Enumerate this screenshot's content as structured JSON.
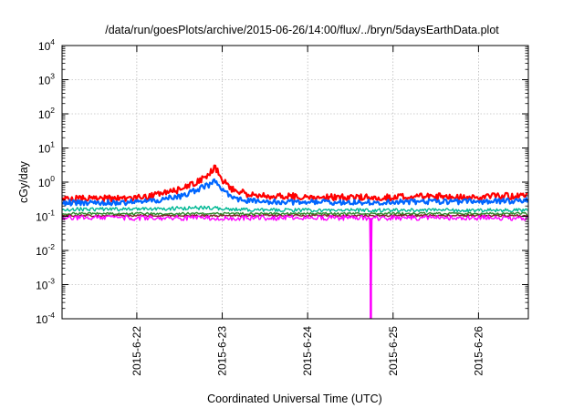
{
  "chart_data": {
    "type": "line",
    "title": "/data/run/goesPlots/archive/2015-06-26/14:00/flux/../bryn/5daysEarthData.plot",
    "xlabel": "Coordinated Universal Time (UTC)",
    "ylabel": "cGy/day",
    "yscale": "log",
    "ylim": [
      0.0001,
      10000
    ],
    "xlim": [
      "2015-06-21T03:00",
      "2015-06-26T14:00"
    ],
    "x_ticks": [
      "2015-6-22",
      "2015-6-23",
      "2015-6-24",
      "2015-6-25",
      "2015-6-26"
    ],
    "y_ticks": [
      {
        "base": "10",
        "exp": "-4"
      },
      {
        "base": "10",
        "exp": "-3"
      },
      {
        "base": "10",
        "exp": "-2"
      },
      {
        "base": "10",
        "exp": "-1"
      },
      {
        "base": "10",
        "exp": "0"
      },
      {
        "base": "10",
        "exp": "1"
      },
      {
        "base": "10",
        "exp": "2"
      },
      {
        "base": "10",
        "exp": "3"
      },
      {
        "base": "10",
        "exp": "4"
      }
    ],
    "grid": true,
    "legend": "none",
    "series": [
      {
        "color": "#ff0000",
        "x": [
          "2015-06-21T03:00",
          "2015-06-21T12:00",
          "2015-06-22T00:00",
          "2015-06-22T06:00",
          "2015-06-22T12:00",
          "2015-06-22T16:00",
          "2015-06-22T20:00",
          "2015-06-22T22:00",
          "2015-06-23T00:00",
          "2015-06-23T03:00",
          "2015-06-23T08:00",
          "2015-06-23T14:00",
          "2015-06-24T00:00",
          "2015-06-24T12:00",
          "2015-06-25T00:00",
          "2015-06-25T12:00",
          "2015-06-26T00:00",
          "2015-06-26T14:00"
        ],
        "y": [
          0.32,
          0.33,
          0.35,
          0.42,
          0.6,
          0.9,
          1.6,
          2.8,
          1.2,
          0.6,
          0.42,
          0.4,
          0.37,
          0.36,
          0.36,
          0.38,
          0.37,
          0.4
        ]
      },
      {
        "color": "#0066ff",
        "x": [
          "2015-06-21T03:00",
          "2015-06-21T12:00",
          "2015-06-22T00:00",
          "2015-06-22T06:00",
          "2015-06-22T12:00",
          "2015-06-22T16:00",
          "2015-06-22T20:00",
          "2015-06-22T22:00",
          "2015-06-23T00:00",
          "2015-06-23T03:00",
          "2015-06-23T08:00",
          "2015-06-23T14:00",
          "2015-06-24T00:00",
          "2015-06-24T12:00",
          "2015-06-25T00:00",
          "2015-06-25T12:00",
          "2015-06-26T00:00",
          "2015-06-26T14:00"
        ],
        "y": [
          0.25,
          0.25,
          0.26,
          0.3,
          0.38,
          0.55,
          0.8,
          1.1,
          0.6,
          0.33,
          0.28,
          0.27,
          0.26,
          0.26,
          0.26,
          0.27,
          0.27,
          0.29
        ]
      },
      {
        "color": "#00b894",
        "x": [
          "2015-06-21T03:00",
          "2015-06-22T00:00",
          "2015-06-22T20:00",
          "2015-06-23T04:00",
          "2015-06-24T00:00",
          "2015-06-25T00:00",
          "2015-06-26T00:00",
          "2015-06-26T14:00"
        ],
        "y": [
          0.16,
          0.16,
          0.18,
          0.16,
          0.15,
          0.15,
          0.15,
          0.15
        ]
      },
      {
        "color": "#2e8b2e",
        "x": [
          "2015-06-21T03:00",
          "2015-06-22T00:00",
          "2015-06-23T00:00",
          "2015-06-24T00:00",
          "2015-06-25T00:00",
          "2015-06-26T00:00",
          "2015-06-26T14:00"
        ],
        "y": [
          0.12,
          0.12,
          0.12,
          0.12,
          0.12,
          0.12,
          0.12
        ]
      },
      {
        "color": "#7a1f1f",
        "x": [
          "2015-06-21T03:00",
          "2015-06-22T00:00",
          "2015-06-23T00:00",
          "2015-06-24T00:00",
          "2015-06-25T00:00",
          "2015-06-26T00:00",
          "2015-06-26T14:00"
        ],
        "y": [
          0.105,
          0.105,
          0.105,
          0.105,
          0.105,
          0.105,
          0.105
        ]
      },
      {
        "color": "#ff00ff",
        "x": [
          "2015-06-21T03:00",
          "2015-06-22T00:00",
          "2015-06-23T00:00",
          "2015-06-24T00:00",
          "2015-06-24T17:30",
          "2015-06-24T17:45",
          "2015-06-24T18:00",
          "2015-06-25T00:00",
          "2015-06-26T00:00",
          "2015-06-26T14:00"
        ],
        "y": [
          0.09,
          0.09,
          0.09,
          0.09,
          0.09,
          0.0001,
          0.09,
          0.09,
          0.09,
          0.09
        ]
      }
    ]
  }
}
